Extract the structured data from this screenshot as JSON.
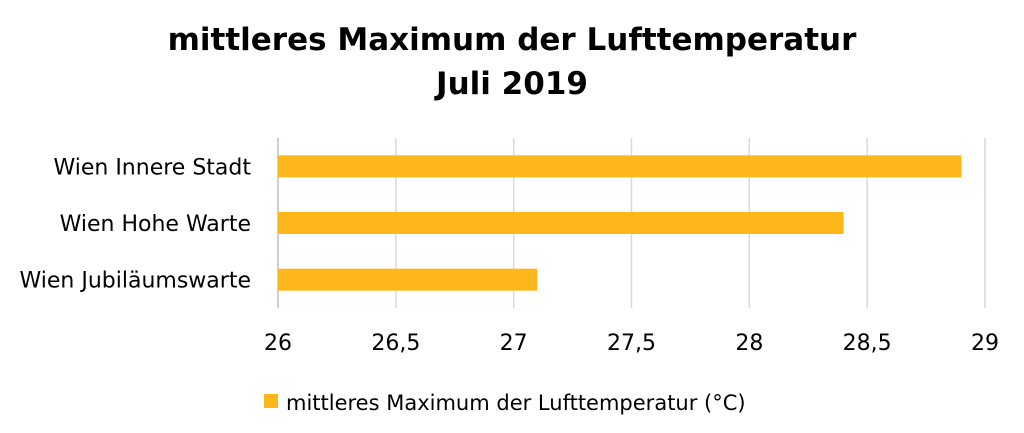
{
  "chart_data": {
    "type": "bar",
    "orientation": "horizontal",
    "title": [
      "mittleres Maximum der Lufttemperatur",
      "Juli 2019"
    ],
    "categories": [
      "Wien Innere Stadt",
      "Wien Hohe Warte",
      "Wien Jubiläumswarte"
    ],
    "series": [
      {
        "name": "mittleres Maximum der Lufttemperatur (°C)",
        "values": [
          28.9,
          28.4,
          27.1
        ],
        "color": "#FDB71A"
      }
    ],
    "xlim": [
      26,
      29
    ],
    "xticks": [
      26,
      26.5,
      27,
      27.5,
      28,
      28.5,
      29
    ],
    "xtick_labels": [
      "26",
      "26,5",
      "27",
      "27,5",
      "28",
      "28,5",
      "29"
    ],
    "xlabel": "",
    "ylabel": "",
    "grid": true,
    "legend_position": "bottom",
    "gridline_color": "#D9D9D9"
  }
}
